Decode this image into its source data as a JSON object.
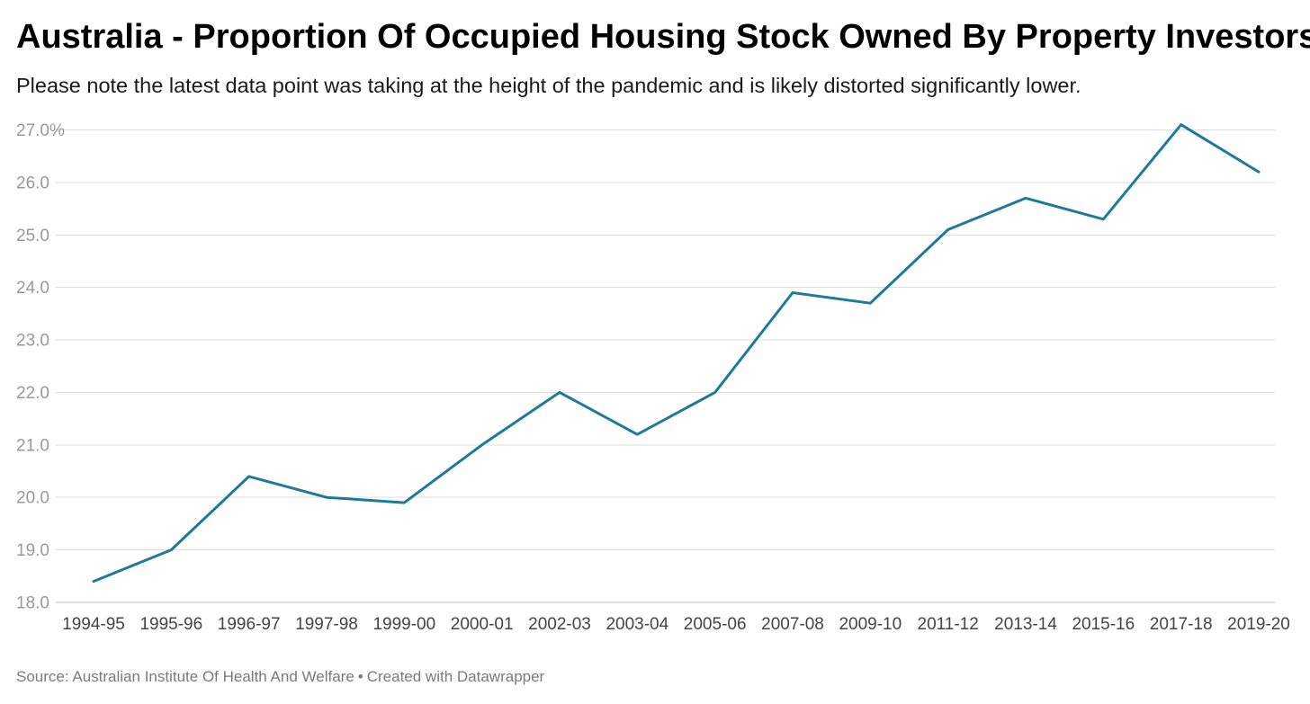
{
  "chart_data": {
    "type": "line",
    "title": "Australia - Proportion Of Occupied Housing Stock Owned By Property Investors",
    "subtitle": "Please note the latest data point was taking at the height of the pandemic and is likely distorted significantly lower.",
    "xlabel": "",
    "ylabel": "",
    "categories": [
      "1994-95",
      "1995-96",
      "1996-97",
      "1997-98",
      "1999-00",
      "2000-01",
      "2002-03",
      "2003-04",
      "2005-06",
      "2007-08",
      "2009-10",
      "2011-12",
      "2013-14",
      "2015-16",
      "2017-18",
      "2019-20"
    ],
    "series": [
      {
        "values": [
          18.4,
          19.0,
          20.4,
          20.0,
          19.9,
          21.0,
          22.0,
          21.2,
          22.0,
          23.9,
          23.7,
          25.1,
          25.7,
          25.3,
          27.1,
          26.2
        ],
        "color": "#1d7a99"
      }
    ],
    "ylim": [
      18.0,
      27.0
    ],
    "yticks": [
      "18.0",
      "19.0",
      "20.0",
      "21.0",
      "22.0",
      "23.0",
      "24.0",
      "25.0",
      "26.0",
      "27.0%"
    ],
    "grid": true,
    "legend": "none"
  },
  "footer": {
    "source": "Source: Australian Institute Of Health And Welfare",
    "separator": "•",
    "credit": "Created with Datawrapper"
  }
}
